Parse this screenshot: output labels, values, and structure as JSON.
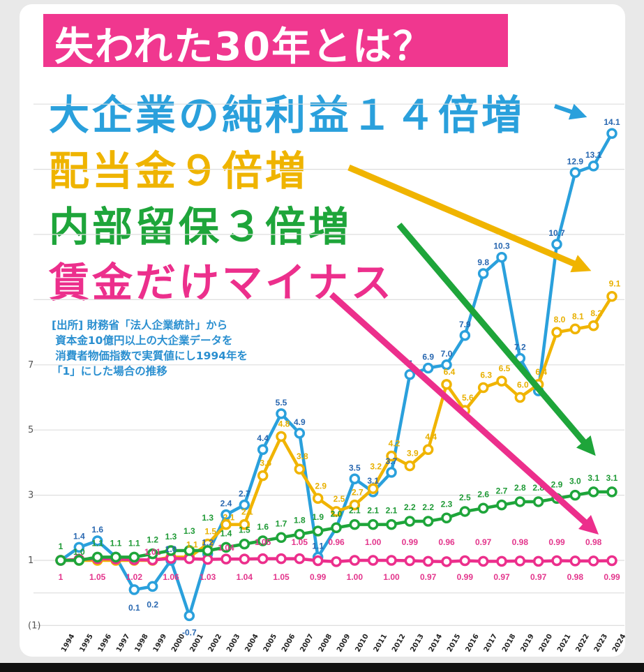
{
  "title": "失われた30年とは？",
  "headlines": {
    "profit": "大企業の純利益１４倍増",
    "dividend": "配当金９倍増",
    "retained": "内部留保３倍増",
    "wage": "賃金だけマイナス"
  },
  "source_note": "[出所] 財務省「法人企業統計」から\n 資本金10億円以上の大企業データを\n 消費者物価指数で実質値にし1994年を\n「1」にした場合の推移",
  "chart_data": {
    "type": "line",
    "title": "失われた30年とは？",
    "xlabel": "",
    "ylabel": "",
    "x": [
      "1994",
      "1995",
      "1996",
      "1997",
      "1998",
      "1999",
      "2000",
      "2001",
      "2002",
      "2003",
      "2004",
      "2005",
      "2006",
      "2007",
      "2008",
      "2009",
      "2010",
      "2011",
      "2012",
      "2013",
      "2014",
      "2015",
      "2016",
      "2017",
      "2018",
      "2019",
      "2020",
      "2021",
      "2022",
      "2023",
      "2024"
    ],
    "ylim": [
      -1,
      15
    ],
    "yticks": [
      {
        "value": 1,
        "label": "1"
      },
      {
        "value": 3,
        "label": "3"
      },
      {
        "value": 5,
        "label": "5"
      },
      {
        "value": 7,
        "label": "7"
      },
      {
        "value": -1,
        "label": "(1)"
      }
    ],
    "grid": true,
    "series": [
      {
        "name": "大企業の純利益",
        "color": "#2aa0dc",
        "label_color": "#2867b0",
        "values": [
          1,
          1.4,
          1.6,
          1.1,
          0.1,
          0.2,
          1.0,
          -0.7,
          1.2,
          2.4,
          2.7,
          4.4,
          5.5,
          4.9,
          1.1,
          2.0,
          3.5,
          3.1,
          3.7,
          6.7,
          6.9,
          7.0,
          7.9,
          9.8,
          10.3,
          7.2,
          6.2,
          10.7,
          12.9,
          13.1,
          14.1
        ],
        "labels": [
          "",
          "1.4",
          "1.6",
          "",
          "0.1",
          "0.2",
          "1.0",
          "-0.7",
          "1.2",
          "2.4",
          "2.7",
          "4.4",
          "5.5",
          "4.9",
          "1.1",
          "",
          "3.5",
          "3.1",
          "3.7",
          "7",
          "6.9",
          "7.0",
          "7.9",
          "9.8",
          "10.3",
          "7.2",
          "",
          "10.7",
          "12.9",
          "13.1",
          "14.1"
        ]
      },
      {
        "name": "配当金",
        "color": "#f0b400",
        "label_color": "#e8b000",
        "values": [
          1,
          1.0,
          1.0,
          1.0,
          1.0,
          1.0,
          1.1,
          1.1,
          1.5,
          2.1,
          2.1,
          3.6,
          4.8,
          3.8,
          2.9,
          2.5,
          2.7,
          3.2,
          4.2,
          3.9,
          4.4,
          6.4,
          5.6,
          6.3,
          6.5,
          6.0,
          6.4,
          8.0,
          8.1,
          8.2,
          9.1
        ],
        "labels": [
          "",
          "",
          "",
          "",
          "",
          "",
          "",
          "1.1",
          "1.5",
          "2.1",
          "2.1",
          "3.6",
          "4.8",
          "3.8",
          "2.9",
          "2.5",
          "2.7",
          "3.2",
          "4.2",
          "3.9",
          "4.4",
          "6.4",
          "5.6",
          "6.3",
          "6.5",
          "6.0",
          "6.4",
          "8.0",
          "8.1",
          "8.2",
          "9.1"
        ]
      },
      {
        "name": "内部留保",
        "color": "#1ea53a",
        "label_color": "#1f9a36",
        "values": [
          1,
          1.0,
          1.1,
          1.1,
          1.1,
          1.2,
          1.3,
          1.3,
          1.3,
          1.4,
          1.5,
          1.6,
          1.7,
          1.8,
          1.9,
          2.0,
          2.1,
          2.1,
          2.1,
          2.2,
          2.2,
          2.3,
          2.5,
          2.6,
          2.7,
          2.8,
          2.8,
          2.9,
          3.0,
          3.1,
          3.1
        ],
        "labels": [
          "1",
          "1.0",
          "1.1",
          "1.1",
          "1.1",
          "1.2",
          "1.3",
          "1.3",
          "1.3",
          "1.4",
          "1.5",
          "1.6",
          "1.7",
          "1.8",
          "1.9",
          "2.0",
          "2.1",
          "2.1",
          "2.1",
          "2.2",
          "2.2",
          "2.3",
          "2.5",
          "2.6",
          "2.7",
          "2.8",
          "2.8",
          "2.9",
          "3.0",
          "3.1",
          "3.1"
        ]
      },
      {
        "name": "賃金",
        "color": "#ec2f8c",
        "label_color": "#e3358c",
        "values": [
          1,
          1.03,
          1.05,
          1.04,
          1.02,
          1.01,
          1.06,
          1.05,
          1.03,
          1.04,
          1.04,
          1.05,
          1.05,
          1.05,
          0.99,
          0.96,
          1.0,
          1.0,
          1.0,
          0.99,
          0.97,
          0.96,
          0.99,
          0.97,
          0.97,
          0.98,
          0.97,
          0.99,
          0.98,
          0.98,
          0.99
        ],
        "labels": [
          "1",
          "",
          "1.05",
          "",
          "1.02",
          "1.01",
          "1.06",
          "",
          "1.03",
          "1.04",
          "1.04",
          "1.05",
          "1.05",
          "1.05",
          "0.99",
          "0.96",
          "1.00",
          "1.00",
          "1.00",
          "0.99",
          "0.97",
          "0.96",
          "0.99",
          "0.97",
          "0.97",
          "0.98",
          "0.97",
          "0.99",
          "0.98",
          "0.98",
          "0.99"
        ]
      }
    ]
  }
}
